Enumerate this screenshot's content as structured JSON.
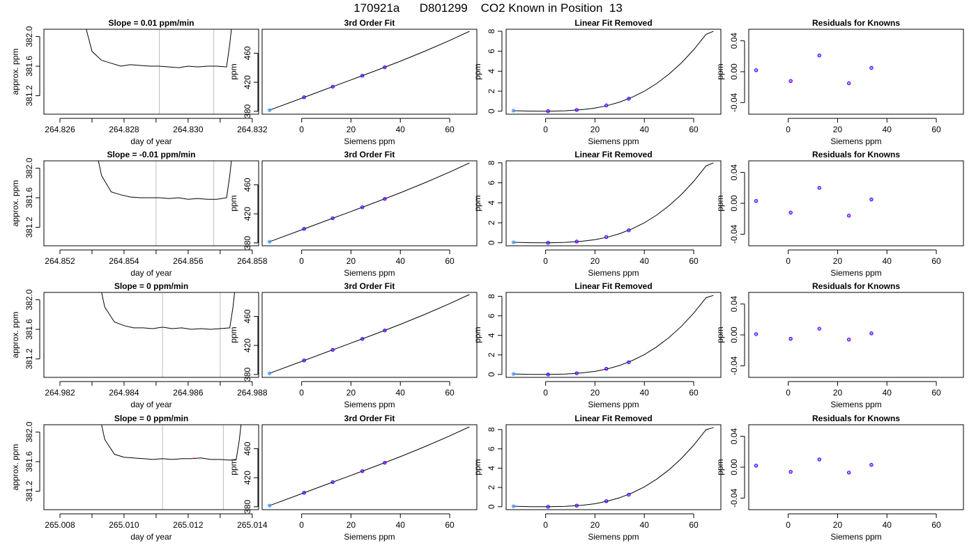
{
  "title": "170921a      D801299    CO2 Known in Position  13",
  "colors": {
    "line": "#000000",
    "vline": "#bebebe",
    "point": "#0000ff",
    "point_first": "#00c8ff",
    "point_accent": "#ff00ff",
    "trace_highlight": "#ff0000"
  },
  "chart_data": [
    {
      "type": "line",
      "row": 1,
      "col": 1,
      "title": "Slope =  0.01  ppm/min",
      "xlabel": "day of year",
      "ylabel": "approx. ppm",
      "xlim": [
        264.8255,
        264.8322
      ],
      "ylim": [
        380.95,
        382.1
      ],
      "xticks": [
        264.826,
        264.827,
        264.828,
        264.829,
        264.83,
        264.831,
        264.832
      ],
      "xtick_labels": [
        "264.826",
        "",
        "264.828",
        "",
        "264.830",
        "",
        "264.832"
      ],
      "yticks": [
        381.2,
        381.6,
        382.0
      ],
      "ytick_labels": [
        "381.2",
        "381.6",
        "382.0"
      ],
      "vlines": [
        264.8291,
        264.8308
      ],
      "trace_x": [
        264.8267,
        264.827,
        264.8273,
        264.8276,
        264.8279,
        264.8282,
        264.8285,
        264.8288,
        264.8291,
        264.8294,
        264.8297,
        264.83,
        264.8303,
        264.8306,
        264.8309,
        264.8312,
        264.8313,
        264.8314
      ],
      "trace_y": [
        382.3,
        381.8,
        381.68,
        381.64,
        381.6,
        381.62,
        381.61,
        381.6,
        381.6,
        381.59,
        381.58,
        381.6,
        381.59,
        381.6,
        381.6,
        381.59,
        381.9,
        382.3
      ]
    },
    {
      "type": "scatter",
      "row": 1,
      "col": 2,
      "title": "3rd Order Fit",
      "xlabel": "Siemens ppm",
      "ylabel": "ppm",
      "xlim": [
        -16,
        71
      ],
      "ylim": [
        376,
        493
      ],
      "xticks": [
        0,
        20,
        40,
        60
      ],
      "xtick_labels": [
        "0",
        "20",
        "40",
        "60"
      ],
      "yticks": [
        380,
        420,
        460
      ],
      "ytick_labels": [
        "380",
        "420",
        "460"
      ],
      "points_x": [
        -13.0,
        1.0,
        12.6,
        24.6,
        33.7
      ],
      "points_y": [
        381.6,
        399.3,
        413.9,
        429.0,
        440.6
      ],
      "fit_x": [
        -13,
        0,
        10,
        20,
        30,
        40,
        50,
        60,
        68
      ],
      "fit_y": [
        381.6,
        398.0,
        410.6,
        423.2,
        435.9,
        449.0,
        462.9,
        477.6,
        490.1
      ]
    },
    {
      "type": "scatter",
      "row": 1,
      "col": 3,
      "title": "Linear Fit Removed",
      "xlabel": "Siemens ppm",
      "ylabel": "ppm",
      "xlim": [
        -16,
        71
      ],
      "ylim": [
        -0.3,
        8.2
      ],
      "xticks": [
        0,
        20,
        40,
        60
      ],
      "xtick_labels": [
        "0",
        "20",
        "40",
        "60"
      ],
      "yticks": [
        0,
        2,
        4,
        6,
        8
      ],
      "ytick_labels": [
        "0",
        "2",
        "4",
        "6",
        "8"
      ],
      "points_x": [
        -13.0,
        1.0,
        12.6,
        24.6,
        33.7
      ],
      "points_y": [
        0.05,
        0.0,
        0.12,
        0.58,
        1.25
      ],
      "fit_x": [
        -13,
        -6,
        1,
        8,
        15,
        20,
        25,
        30,
        35,
        40,
        45,
        50,
        55,
        60,
        65,
        68
      ],
      "fit_y": [
        0.05,
        0.01,
        0.0,
        0.04,
        0.16,
        0.31,
        0.56,
        0.91,
        1.39,
        2.0,
        2.77,
        3.71,
        4.83,
        6.15,
        7.69,
        8.0
      ]
    },
    {
      "type": "scatter",
      "row": 1,
      "col": 4,
      "title": "Residuals for Knowns",
      "xlabel": "Siemens ppm",
      "ylabel": "ppm",
      "xlim": [
        -16,
        71
      ],
      "ylim": [
        -0.055,
        0.055
      ],
      "xticks": [
        0,
        20,
        40,
        60
      ],
      "xtick_labels": [
        "0",
        "20",
        "40",
        "60"
      ],
      "yticks": [
        -0.04,
        0.0,
        0.04
      ],
      "ytick_labels": [
        "-0.04",
        "0.00",
        "0.04"
      ],
      "points_x": [
        -13.0,
        1.0,
        12.6,
        24.6,
        33.7
      ],
      "points_y": [
        0.002,
        -0.012,
        0.021,
        -0.015,
        0.005
      ]
    },
    {
      "type": "line",
      "row": 2,
      "col": 1,
      "title": "Slope =  -0.01  ppm/min",
      "xlabel": "day of year",
      "ylabel": "approx. ppm",
      "xlim": [
        264.8515,
        264.8582
      ],
      "ylim": [
        380.95,
        382.1
      ],
      "xticks": [
        264.852,
        264.853,
        264.854,
        264.855,
        264.856,
        264.857,
        264.858
      ],
      "xtick_labels": [
        "264.852",
        "",
        "264.854",
        "",
        "264.856",
        "",
        "264.858"
      ],
      "yticks": [
        381.2,
        381.6,
        382.0
      ],
      "ytick_labels": [
        "381.2",
        "381.6",
        "382.0"
      ],
      "vlines": [
        264.855,
        264.8568
      ],
      "trace_x": [
        264.8531,
        264.8533,
        264.8536,
        264.8539,
        264.8542,
        264.8545,
        264.8548,
        264.8551,
        264.8554,
        264.8557,
        264.856,
        264.8563,
        264.8566,
        264.8569,
        264.8572,
        264.8573,
        264.8574
      ],
      "trace_y": [
        382.3,
        381.9,
        381.68,
        381.64,
        381.61,
        381.6,
        381.6,
        381.6,
        381.59,
        381.6,
        381.58,
        381.59,
        381.58,
        381.58,
        381.6,
        381.9,
        382.3
      ]
    },
    {
      "type": "scatter",
      "row": 2,
      "col": 2,
      "title": "3rd Order Fit",
      "xlabel": "Siemens ppm",
      "ylabel": "ppm",
      "xlim": [
        -16,
        71
      ],
      "ylim": [
        376,
        493
      ],
      "xticks": [
        0,
        20,
        40,
        60
      ],
      "xtick_labels": [
        "0",
        "20",
        "40",
        "60"
      ],
      "yticks": [
        380,
        420,
        460
      ],
      "ytick_labels": [
        "380",
        "420",
        "460"
      ],
      "points_x": [
        -13.0,
        1.0,
        12.6,
        24.6,
        33.7
      ],
      "points_y": [
        381.6,
        399.3,
        413.9,
        429.0,
        440.6
      ],
      "fit_x": [
        -13,
        0,
        10,
        20,
        30,
        40,
        50,
        60,
        68
      ],
      "fit_y": [
        381.6,
        398.0,
        410.6,
        423.2,
        435.9,
        449.0,
        462.9,
        477.6,
        490.1
      ]
    },
    {
      "type": "scatter",
      "row": 2,
      "col": 3,
      "title": "Linear Fit Removed",
      "xlabel": "Siemens ppm",
      "ylabel": "ppm",
      "xlim": [
        -16,
        71
      ],
      "ylim": [
        -0.3,
        8.2
      ],
      "xticks": [
        0,
        20,
        40,
        60
      ],
      "xtick_labels": [
        "0",
        "20",
        "40",
        "60"
      ],
      "yticks": [
        0,
        2,
        4,
        6,
        8
      ],
      "ytick_labels": [
        "0",
        "2",
        "4",
        "6",
        "8"
      ],
      "points_x": [
        -13.0,
        1.0,
        12.6,
        24.6,
        33.7
      ],
      "points_y": [
        0.05,
        0.0,
        0.12,
        0.58,
        1.25
      ],
      "fit_x": [
        -13,
        -6,
        1,
        8,
        15,
        20,
        25,
        30,
        35,
        40,
        45,
        50,
        55,
        60,
        65,
        68
      ],
      "fit_y": [
        0.05,
        0.01,
        0.0,
        0.04,
        0.16,
        0.31,
        0.56,
        0.91,
        1.39,
        2.0,
        2.77,
        3.71,
        4.83,
        6.15,
        7.69,
        8.0
      ]
    },
    {
      "type": "scatter",
      "row": 2,
      "col": 4,
      "title": "Residuals for Knowns",
      "xlabel": "Siemens ppm",
      "ylabel": "ppm",
      "xlim": [
        -16,
        71
      ],
      "ylim": [
        -0.055,
        0.055
      ],
      "xticks": [
        0,
        20,
        40,
        60
      ],
      "xtick_labels": [
        "0",
        "20",
        "40",
        "60"
      ],
      "yticks": [
        -0.04,
        0.0,
        0.04
      ],
      "ytick_labels": [
        "-0.04",
        "0.00",
        "0.04"
      ],
      "points_x": [
        -13.0,
        1.0,
        12.6,
        24.6,
        33.7
      ],
      "points_y": [
        0.003,
        -0.012,
        0.02,
        -0.016,
        0.005
      ]
    },
    {
      "type": "line",
      "row": 3,
      "col": 1,
      "title": "Slope =  0  ppm/min",
      "xlabel": "day of year",
      "ylabel": "approx. ppm",
      "xlim": [
        264.9815,
        264.9882
      ],
      "ylim": [
        380.95,
        382.1
      ],
      "xticks": [
        264.982,
        264.983,
        264.984,
        264.985,
        264.986,
        264.987,
        264.988
      ],
      "xtick_labels": [
        "264.982",
        "",
        "264.984",
        "",
        "264.986",
        "",
        "264.988"
      ],
      "yticks": [
        381.2,
        381.6,
        382.0
      ],
      "ytick_labels": [
        "381.2",
        "381.6",
        "382.0"
      ],
      "vlines": [
        264.9852,
        264.987
      ],
      "trace_x": [
        264.9832,
        264.9834,
        264.9837,
        264.984,
        264.9843,
        264.9846,
        264.9849,
        264.9852,
        264.9855,
        264.9858,
        264.9861,
        264.9864,
        264.9867,
        264.987,
        264.9873,
        264.9874,
        264.9875
      ],
      "trace_y": [
        382.3,
        381.9,
        381.7,
        381.65,
        381.62,
        381.62,
        381.61,
        381.63,
        381.61,
        381.62,
        381.6,
        381.61,
        381.6,
        381.61,
        381.62,
        381.9,
        382.3
      ]
    },
    {
      "type": "scatter",
      "row": 3,
      "col": 2,
      "title": "3rd Order Fit",
      "xlabel": "Siemens ppm",
      "ylabel": "ppm",
      "xlim": [
        -16,
        71
      ],
      "ylim": [
        376,
        493
      ],
      "xticks": [
        0,
        20,
        40,
        60
      ],
      "xtick_labels": [
        "0",
        "20",
        "40",
        "60"
      ],
      "yticks": [
        380,
        420,
        460
      ],
      "ytick_labels": [
        "380",
        "420",
        "460"
      ],
      "points_x": [
        -13.0,
        1.0,
        12.6,
        24.6,
        33.7
      ],
      "points_y": [
        381.6,
        399.3,
        413.9,
        429.0,
        440.6
      ],
      "fit_x": [
        -13,
        0,
        10,
        20,
        30,
        40,
        50,
        60,
        68
      ],
      "fit_y": [
        381.6,
        398.0,
        410.6,
        423.2,
        435.9,
        449.0,
        462.9,
        477.6,
        490.1
      ]
    },
    {
      "type": "scatter",
      "row": 3,
      "col": 3,
      "title": "Linear Fit Removed",
      "xlabel": "Siemens ppm",
      "ylabel": "ppm",
      "xlim": [
        -16,
        71
      ],
      "ylim": [
        -0.3,
        8.4
      ],
      "xticks": [
        0,
        20,
        40,
        60
      ],
      "xtick_labels": [
        "0",
        "20",
        "40",
        "60"
      ],
      "yticks": [
        0,
        2,
        4,
        6,
        8
      ],
      "ytick_labels": [
        "0",
        "2",
        "4",
        "6",
        "8"
      ],
      "points_x": [
        -13.0,
        1.0,
        12.6,
        24.6,
        33.7
      ],
      "points_y": [
        0.05,
        0.0,
        0.12,
        0.58,
        1.25
      ],
      "fit_x": [
        -13,
        -6,
        1,
        8,
        15,
        20,
        25,
        30,
        35,
        40,
        45,
        50,
        55,
        60,
        65,
        68
      ],
      "fit_y": [
        0.05,
        0.01,
        0.0,
        0.04,
        0.16,
        0.31,
        0.56,
        0.92,
        1.41,
        2.03,
        2.82,
        3.78,
        4.93,
        6.28,
        7.86,
        8.1
      ]
    },
    {
      "type": "scatter",
      "row": 3,
      "col": 4,
      "title": "Residuals for Knowns",
      "xlabel": "Siemens ppm",
      "ylabel": "ppm",
      "xlim": [
        -16,
        71
      ],
      "ylim": [
        -0.055,
        0.055
      ],
      "xticks": [
        0,
        20,
        40,
        60
      ],
      "xtick_labels": [
        "0",
        "20",
        "40",
        "60"
      ],
      "yticks": [
        -0.04,
        0.0,
        0.04
      ],
      "ytick_labels": [
        "-0.04",
        "0.00",
        "0.04"
      ],
      "points_x": [
        -13.0,
        1.0,
        12.6,
        24.6,
        33.7
      ],
      "points_y": [
        0.001,
        -0.005,
        0.008,
        -0.006,
        0.002
      ]
    },
    {
      "type": "line",
      "row": 4,
      "col": 1,
      "title": "Slope =  0  ppm/min",
      "xlabel": "day of year",
      "ylabel": "approx. ppm",
      "xlim": [
        265.0075,
        265.0142
      ],
      "ylim": [
        380.95,
        382.1
      ],
      "xticks": [
        265.008,
        265.009,
        265.01,
        265.011,
        265.012,
        265.013,
        265.014
      ],
      "xtick_labels": [
        "265.008",
        "",
        "265.010",
        "",
        "265.012",
        "",
        "265.014"
      ],
      "yticks": [
        381.2,
        381.6,
        382.0
      ],
      "ytick_labels": [
        "381.2",
        "381.6",
        "382.0"
      ],
      "vlines": [
        265.0112,
        265.0131
      ],
      "trace_x": [
        265.0092,
        265.0094,
        265.0097,
        265.01,
        265.0103,
        265.0106,
        265.0109,
        265.0112,
        265.0115,
        265.0118,
        265.0121,
        265.0124,
        265.0127,
        265.013,
        265.0133,
        265.0135,
        265.0136,
        265.0137
      ],
      "trace_y": [
        382.3,
        381.9,
        381.7,
        381.66,
        381.65,
        381.64,
        381.63,
        381.64,
        381.63,
        381.64,
        381.64,
        381.65,
        381.63,
        381.63,
        381.62,
        381.63,
        381.9,
        382.3
      ],
      "highlight_x": [
        265.0121,
        265.0122
      ],
      "highlight_y": [
        381.64,
        381.65
      ]
    },
    {
      "type": "scatter",
      "row": 4,
      "col": 2,
      "title": "3rd Order Fit",
      "xlabel": "Siemens ppm",
      "ylabel": "ppm",
      "xlim": [
        -16,
        71
      ],
      "ylim": [
        376,
        493
      ],
      "xticks": [
        0,
        20,
        40,
        60
      ],
      "xtick_labels": [
        "0",
        "20",
        "40",
        "60"
      ],
      "yticks": [
        380,
        420,
        460
      ],
      "ytick_labels": [
        "380",
        "420",
        "460"
      ],
      "points_x": [
        -13.0,
        1.0,
        12.6,
        24.6,
        33.7
      ],
      "points_y": [
        381.6,
        399.3,
        413.9,
        429.0,
        440.6
      ],
      "fit_x": [
        -13,
        0,
        10,
        20,
        30,
        40,
        50,
        60,
        68
      ],
      "fit_y": [
        381.6,
        398.0,
        410.6,
        423.2,
        435.9,
        449.0,
        462.9,
        477.6,
        490.1
      ]
    },
    {
      "type": "scatter",
      "row": 4,
      "col": 3,
      "title": "Linear Fit Removed",
      "xlabel": "Siemens ppm",
      "ylabel": "ppm",
      "xlim": [
        -16,
        71
      ],
      "ylim": [
        -0.3,
        8.5
      ],
      "xticks": [
        0,
        20,
        40,
        60
      ],
      "xtick_labels": [
        "0",
        "20",
        "40",
        "60"
      ],
      "yticks": [
        0,
        2,
        4,
        6,
        8
      ],
      "ytick_labels": [
        "0",
        "2",
        "4",
        "6",
        "8"
      ],
      "points_x": [
        -13.0,
        1.0,
        12.6,
        24.6,
        33.7
      ],
      "points_y": [
        0.05,
        0.0,
        0.12,
        0.58,
        1.25
      ],
      "fit_x": [
        -13,
        -6,
        1,
        8,
        15,
        20,
        25,
        30,
        35,
        40,
        45,
        50,
        55,
        60,
        65,
        68
      ],
      "fit_y": [
        0.05,
        0.01,
        0.0,
        0.04,
        0.16,
        0.31,
        0.57,
        0.93,
        1.43,
        2.06,
        2.86,
        3.83,
        5.0,
        6.38,
        7.99,
        8.2
      ]
    },
    {
      "type": "scatter",
      "row": 4,
      "col": 4,
      "title": "Residuals for Knowns",
      "xlabel": "Siemens ppm",
      "ylabel": "ppm",
      "xlim": [
        -16,
        71
      ],
      "ylim": [
        -0.055,
        0.055
      ],
      "xticks": [
        0,
        20,
        40,
        60
      ],
      "xtick_labels": [
        "0",
        "20",
        "40",
        "60"
      ],
      "yticks": [
        -0.04,
        0.0,
        0.04
      ],
      "ytick_labels": [
        "-0.04",
        "0.00",
        "0.04"
      ],
      "points_x": [
        -13.0,
        1.0,
        12.6,
        24.6,
        33.7
      ],
      "points_y": [
        0.002,
        -0.006,
        0.01,
        -0.007,
        0.003
      ]
    }
  ]
}
